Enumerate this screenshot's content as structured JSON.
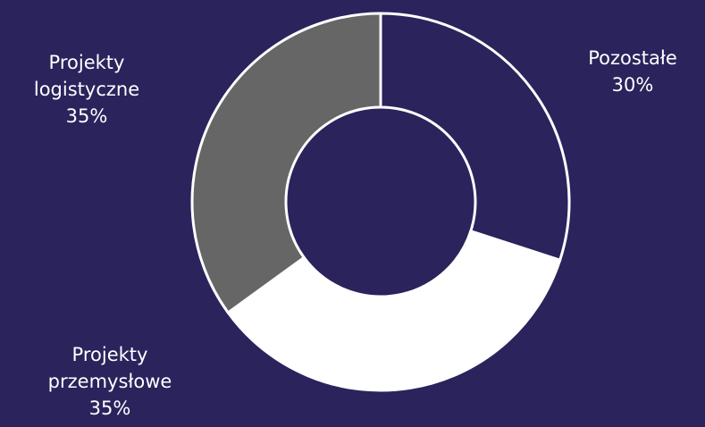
{
  "colors": {
    "background": "#2a235c",
    "slice_border": "#ffffff",
    "label_text": "#ffffff"
  },
  "chart_data": {
    "type": "pie",
    "variant": "donut",
    "title": "",
    "categories": [
      "Pozostałe",
      "Projekty przemysłowe",
      "Projekty logistyczne"
    ],
    "values": [
      30,
      35,
      35
    ],
    "unit": "%",
    "colors": [
      "#2a235c",
      "#ffffff",
      "#666666"
    ],
    "labels": [
      {
        "lines": [
          "Pozostałe",
          "30%"
        ]
      },
      {
        "lines": [
          "Projekty",
          "przemysłowe",
          "35%"
        ]
      },
      {
        "lines": [
          "Projekty",
          "logistyczne",
          "35%"
        ]
      }
    ],
    "start_angle": "12 o'clock",
    "direction": "clockwise",
    "legend": "none",
    "grid": false
  }
}
